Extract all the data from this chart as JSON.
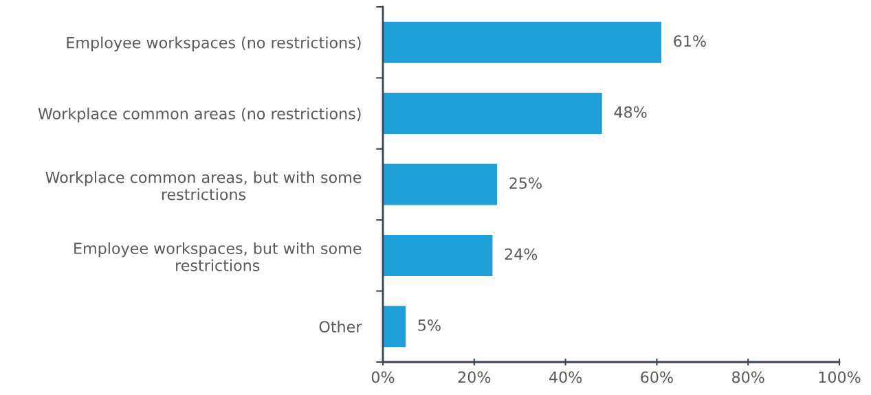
{
  "chart_data": {
    "type": "bar",
    "orientation": "horizontal",
    "categories": [
      "Employee workspaces (no restrictions)",
      "Workplace common areas (no restrictions)",
      "Workplace common areas, but with some\nrestrictions",
      "Employee workspaces, but with some\nrestrictions",
      "Other"
    ],
    "values": [
      61,
      48,
      25,
      24,
      5
    ],
    "value_labels": [
      "61%",
      "48%",
      "25%",
      "24%",
      "5%"
    ],
    "color": "#1fa0d9",
    "xlim": [
      0,
      100
    ],
    "xticks": [
      {
        "value": 0,
        "label": "0%"
      },
      {
        "value": 20,
        "label": "20%"
      },
      {
        "value": 40,
        "label": "40%"
      },
      {
        "value": 60,
        "label": "60%"
      },
      {
        "value": 80,
        "label": "80%"
      },
      {
        "value": 100,
        "label": "100%"
      }
    ],
    "grid": false,
    "legend": false
  }
}
